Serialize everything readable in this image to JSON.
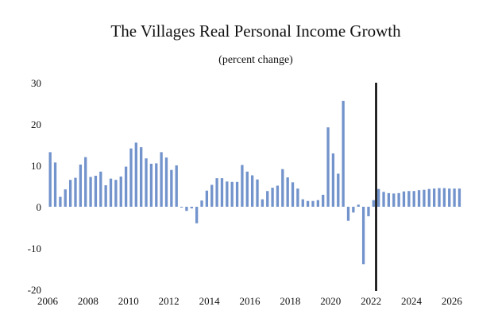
{
  "chart_data": {
    "type": "bar",
    "title": "The Villages Real Personal Income Growth",
    "subtitle": "(percent change)",
    "xlabel": "",
    "ylabel": "",
    "ylim": [
      -20,
      30
    ],
    "yticks": [
      30,
      20,
      10,
      0,
      -10,
      -20
    ],
    "xlim": [
      2006,
      2026.75
    ],
    "xticks": [
      "2006",
      "2008",
      "2010",
      "2012",
      "2014",
      "2016",
      "2018",
      "2020",
      "2022",
      "2024",
      "2026"
    ],
    "grid": false,
    "legend": "none",
    "bar_color": "#7293cb",
    "vline_color": "#000000",
    "forecast_divider": "2022Q2",
    "series": [
      {
        "x": [
          "2006Q1",
          "2006Q2",
          "2006Q3",
          "2006Q4",
          "2007Q1",
          "2007Q2",
          "2007Q3",
          "2007Q4",
          "2008Q1",
          "2008Q2",
          "2008Q3",
          "2008Q4",
          "2009Q1",
          "2009Q2",
          "2009Q3",
          "2009Q4",
          "2010Q1",
          "2010Q2",
          "2010Q3",
          "2010Q4",
          "2011Q1",
          "2011Q2",
          "2011Q3",
          "2011Q4",
          "2012Q1",
          "2012Q2",
          "2012Q3",
          "2012Q4",
          "2013Q1",
          "2013Q2",
          "2013Q3",
          "2013Q4",
          "2014Q1",
          "2014Q2",
          "2014Q3",
          "2014Q4",
          "2015Q1",
          "2015Q2",
          "2015Q3",
          "2015Q4",
          "2016Q1",
          "2016Q2",
          "2016Q3",
          "2016Q4",
          "2017Q1",
          "2017Q2",
          "2017Q3",
          "2017Q4",
          "2018Q1",
          "2018Q2",
          "2018Q3",
          "2018Q4",
          "2019Q1",
          "2019Q2",
          "2019Q3",
          "2019Q4",
          "2020Q1",
          "2020Q2",
          "2020Q3",
          "2020Q4",
          "2021Q1",
          "2021Q2",
          "2021Q3",
          "2021Q4",
          "2022Q1",
          "2022Q2",
          "2022Q3",
          "2022Q4",
          "2023Q1",
          "2023Q2",
          "2023Q3",
          "2023Q4",
          "2024Q1",
          "2024Q2",
          "2024Q3",
          "2024Q4",
          "2025Q1",
          "2025Q2",
          "2025Q3",
          "2025Q4",
          "2026Q1",
          "2026Q2"
        ],
        "values": [
          13.2,
          10.7,
          2.4,
          4.2,
          6.5,
          7.0,
          10.2,
          12.0,
          7.2,
          7.5,
          8.5,
          5.2,
          6.8,
          6.5,
          7.3,
          9.7,
          14.1,
          15.5,
          14.4,
          11.7,
          10.4,
          10.5,
          13.2,
          11.9,
          8.9,
          10.0,
          -0.2,
          -1.0,
          -0.4,
          -4.0,
          1.5,
          3.9,
          5.3,
          6.9,
          6.9,
          6.1,
          6.0,
          6.0,
          10.1,
          8.5,
          7.6,
          6.6,
          1.8,
          3.8,
          4.6,
          5.1,
          9.1,
          7.1,
          5.9,
          4.4,
          1.8,
          1.4,
          1.4,
          1.6,
          2.9,
          19.2,
          12.9,
          8.0,
          25.6,
          -3.4,
          -1.4,
          0.5,
          -13.9,
          -2.3,
          1.6,
          4.3,
          3.6,
          3.3,
          3.2,
          3.3,
          3.7,
          3.8,
          3.8,
          4.0,
          4.1,
          4.3,
          4.4,
          4.5,
          4.5,
          4.4,
          4.4,
          4.4
        ]
      }
    ]
  }
}
